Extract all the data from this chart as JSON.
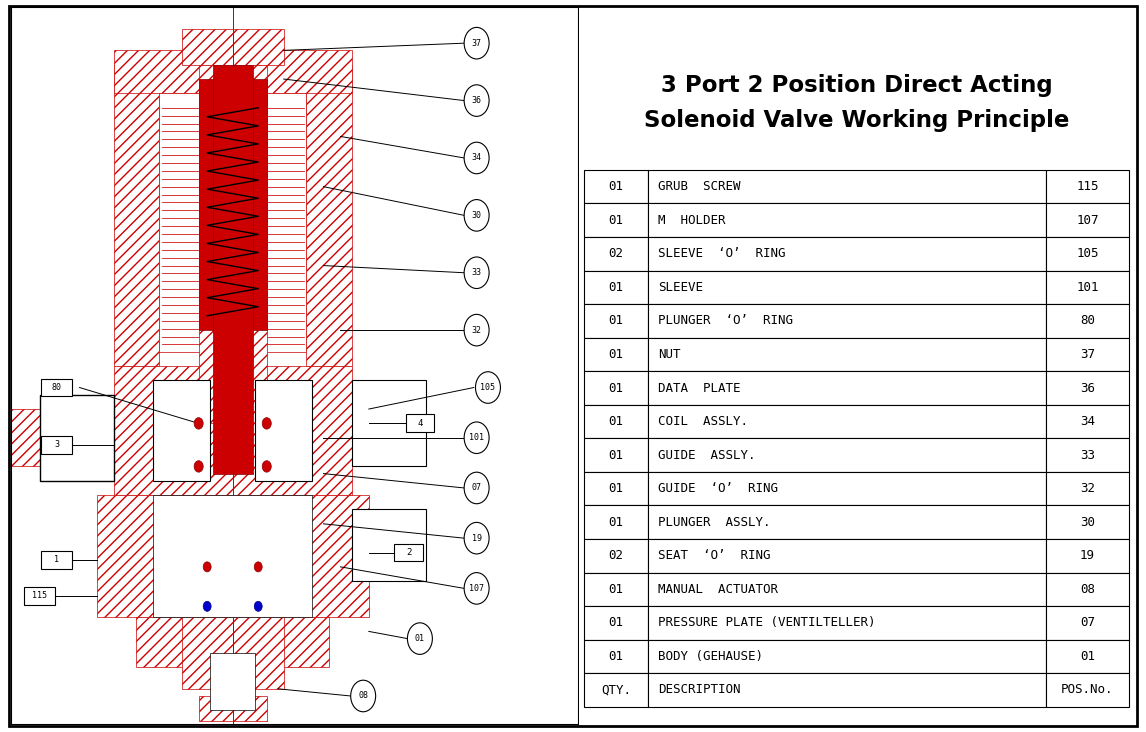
{
  "title_line1": "3 Port 2 Position Direct Acting",
  "title_line2": "Solenoid Valve Working Principle",
  "bg_color": "#ffffff",
  "table_rows": [
    [
      "01",
      "GRUB  SCREW",
      "115"
    ],
    [
      "01",
      "M  HOLDER",
      "107"
    ],
    [
      "02",
      "SLEEVE  ‘O’  RING",
      "105"
    ],
    [
      "01",
      "SLEEVE",
      "101"
    ],
    [
      "01",
      "PLUNGER  ‘O’  RING",
      "80"
    ],
    [
      "01",
      "NUT",
      "37"
    ],
    [
      "01",
      "DATA  PLATE",
      "36"
    ],
    [
      "01",
      "COIL  ASSLY.",
      "34"
    ],
    [
      "01",
      "GUIDE  ASSLY.",
      "33"
    ],
    [
      "01",
      "GUIDE  ‘O’  RING",
      "32"
    ],
    [
      "01",
      "PLUNGER  ASSLY.",
      "30"
    ],
    [
      "02",
      "SEAT  ‘O’  RING",
      "19"
    ],
    [
      "01",
      "MANUAL  ACTUATOR",
      "08"
    ],
    [
      "01",
      "PRESSURE PLATE (VENTILTELLER)",
      "07"
    ],
    [
      "01",
      "BODY (GEHAUSE)",
      "01"
    ],
    [
      "QTY.",
      "DESCRIPTION",
      "POS.No."
    ]
  ],
  "red": "#cc0000",
  "black": "#000000",
  "blue": "#0000cc",
  "white": "#ffffff"
}
